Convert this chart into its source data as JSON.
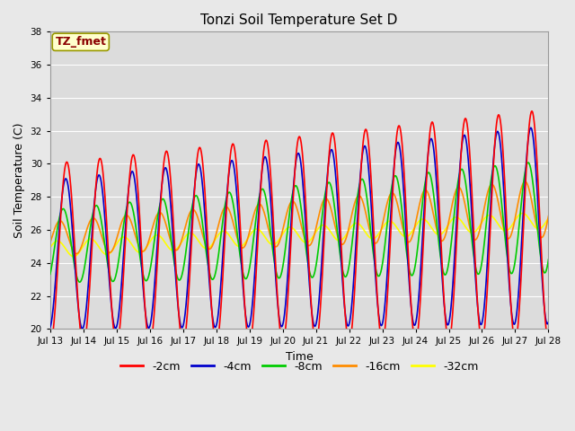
{
  "title": "Tonzi Soil Temperature Set D",
  "xlabel": "Time",
  "ylabel": "Soil Temperature (C)",
  "ylim": [
    20,
    38
  ],
  "annotation": "TZ_fmet",
  "annotation_color": "#8B0000",
  "annotation_bg": "#FFFFCC",
  "annotation_edge": "#999900",
  "bg_color": "#E8E8E8",
  "plot_bg": "#DCDCDC",
  "xtick_labels": [
    "Jul 13",
    "Jul 14",
    "Jul 15",
    "Jul 16",
    "Jul 17",
    "Jul 18",
    "Jul 19",
    "Jul 20",
    "Jul 21",
    "Jul 22",
    "Jul 23",
    "Jul 24",
    "Jul 25",
    "Jul 26",
    "Jul 27",
    "Jul 28"
  ],
  "legend_labels": [
    "-2cm",
    "-4cm",
    "-8cm",
    "-16cm",
    "-32cm"
  ],
  "legend_colors": [
    "#FF0000",
    "#0000CC",
    "#00CC00",
    "#FF8C00",
    "#FFFF00"
  ],
  "line_widths": [
    1.2,
    1.2,
    1.2,
    1.2,
    1.2
  ],
  "yticks": [
    20,
    22,
    24,
    26,
    28,
    30,
    32,
    34,
    36,
    38
  ]
}
